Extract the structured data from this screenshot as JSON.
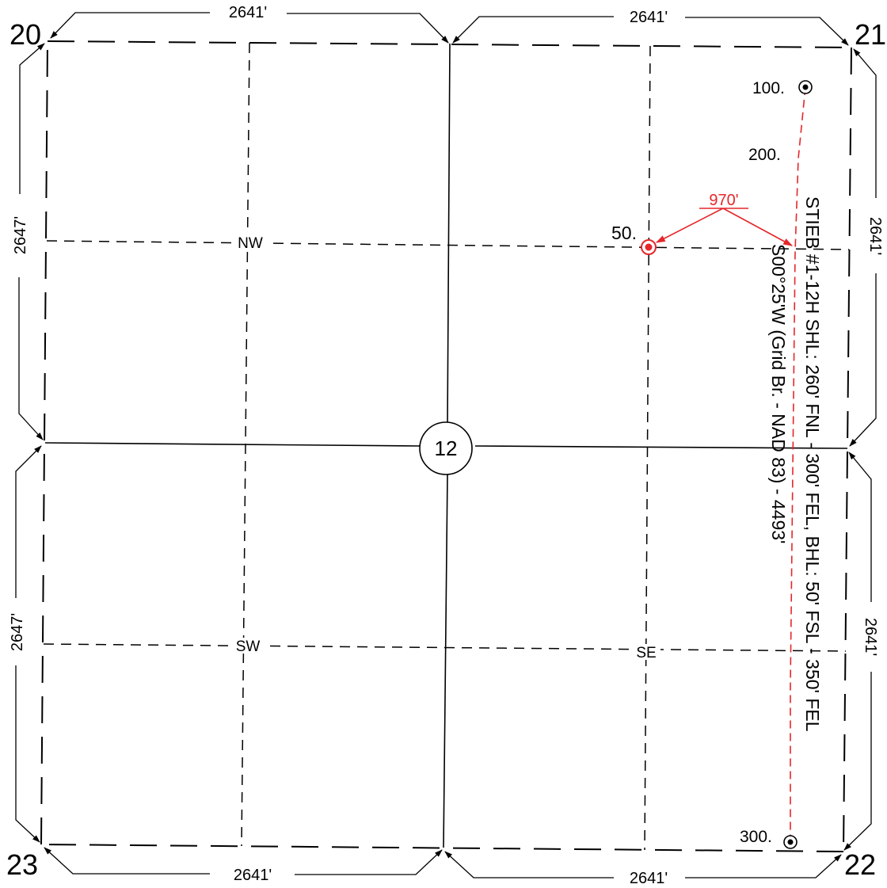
{
  "corners": {
    "nw": "20",
    "ne": "21",
    "sw": "23",
    "se": "22"
  },
  "dimensions": {
    "top_left": "2641'",
    "top_right": "2641'",
    "bottom_left": "2641'",
    "bottom_right": "2641'",
    "left_upper": "2647'",
    "left_lower": "2647'",
    "right_upper": "2641'",
    "right_lower": "2641'"
  },
  "section_number": "12",
  "quarters": {
    "nw": "NW",
    "sw": "SW",
    "se": "SE"
  },
  "depth_markers": {
    "d100": "100.",
    "d200": "200.",
    "d300": "300."
  },
  "offset": {
    "label": "50.",
    "distance": "970'"
  },
  "well": {
    "line1": "STIEB #1-12H SHL: 260' FNL - 300' FEL, BHL: 50' FSL - 350' FEL",
    "line2": "S00°25'W (Grid Br. - NAD 83) - 4493'"
  },
  "colors": {
    "linework": "#000000",
    "well_path": "#e5262a"
  }
}
